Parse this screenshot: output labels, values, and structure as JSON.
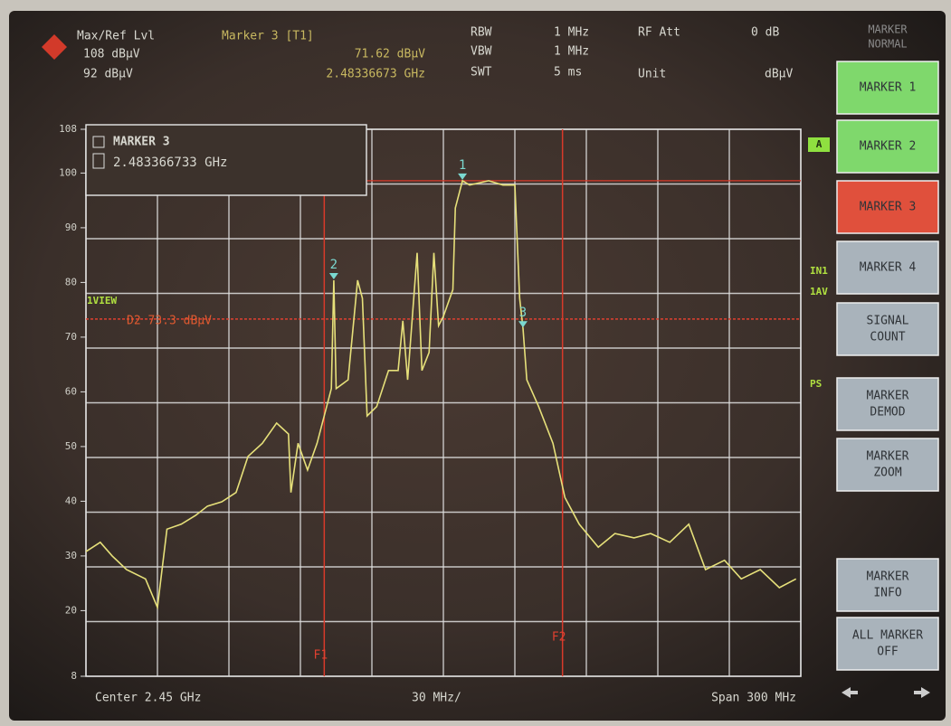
{
  "header": {
    "ref_level_label": "Max/Ref Lvl",
    "ref_level": "108 dBµV",
    "ref_level_2": "92 dBµV",
    "marker_label": "Marker 3 [T1]",
    "marker_level": "71.62 dBµV",
    "marker_freq": "2.48336673 GHz",
    "rbw_label": "RBW",
    "rbw": "1 MHz",
    "vbw_label": "VBW",
    "vbw": "1 MHz",
    "swt_label": "SWT",
    "swt": "5 ms",
    "rf_att_label": "RF Att",
    "rf_att": "0 dB",
    "unit_label": "Unit",
    "unit": "dBµV"
  },
  "softkeys": {
    "title": [
      "MARKER",
      "NORMAL"
    ],
    "buttons": [
      {
        "lines": [
          "MARKER 1"
        ],
        "color": "#7fd86c"
      },
      {
        "lines": [
          "MARKER 2"
        ],
        "color": "#7fd86c"
      },
      {
        "lines": [
          "MARKER 3"
        ],
        "color": "#e0503c"
      },
      {
        "lines": [
          "MARKER 4"
        ],
        "color": "#a9b3bb"
      },
      {
        "lines": [
          "SIGNAL",
          "COUNT"
        ],
        "color": "#a9b3bb"
      },
      {
        "lines": [
          "MARKER",
          "DEMOD"
        ],
        "color": "#a9b3bb"
      },
      {
        "lines": [
          "MARKER",
          "ZOOM"
        ],
        "color": "#a9b3bb"
      },
      {
        "lines": [
          "MARKER",
          "INFO"
        ],
        "color": "#a9b3bb"
      },
      {
        "lines": [
          "ALL MARKER",
          "OFF"
        ],
        "color": "#a9b3bb"
      }
    ]
  },
  "info_box": {
    "title": "MARKER 3",
    "value": "2.483366733 GHz"
  },
  "side_labels": {
    "trace": "A",
    "view": "1VIEW",
    "input": "IN1",
    "detector": "1AV",
    "preamp": "PS"
  },
  "footer": {
    "center": "Center 2.45 GHz",
    "div": "30 MHz/",
    "span": "Span 300 MHz"
  },
  "chart_data": {
    "type": "line",
    "xlim": [
      2.3,
      2.6
    ],
    "ylim": [
      8,
      108
    ],
    "yticks": [
      108,
      100,
      90,
      80,
      70,
      60,
      50,
      40,
      30,
      20,
      8
    ],
    "series": [
      {
        "color": "#e6e07a",
        "x": [
          2.3,
          2.306,
          2.311,
          2.317,
          2.325,
          2.33,
          2.334,
          2.34,
          2.346,
          2.351,
          2.357,
          2.363,
          2.368,
          2.374,
          2.38,
          2.385,
          2.386,
          2.389,
          2.393,
          2.397,
          2.403,
          2.404,
          2.405,
          2.41,
          2.414,
          2.416,
          2.418,
          2.422,
          2.427,
          2.431,
          2.433,
          2.435,
          2.439,
          2.441,
          2.444,
          2.446,
          2.448,
          2.45,
          2.454,
          2.455,
          2.457,
          2.458,
          2.461,
          2.469,
          2.475,
          2.48,
          2.482,
          2.4834,
          2.485,
          2.49,
          2.496,
          2.501,
          2.507,
          2.515,
          2.522,
          2.53,
          2.537,
          2.545,
          2.553,
          2.56,
          2.568,
          2.575,
          2.583,
          2.591,
          2.598
        ],
        "values": [
          30.8,
          32.5,
          30,
          27.5,
          25.8,
          20.6,
          34.9,
          35.8,
          37.4,
          39.1,
          39.9,
          41.6,
          48.2,
          50.6,
          54.3,
          52.3,
          41.6,
          50.6,
          45.7,
          50.6,
          60.6,
          80.4,
          60.6,
          62.2,
          80.4,
          77.1,
          55.6,
          57.3,
          63.9,
          63.9,
          73,
          62.2,
          85.4,
          63.9,
          67.2,
          85.4,
          72.1,
          73.8,
          78.7,
          93.6,
          96.9,
          98.6,
          97.8,
          98.6,
          97.8,
          97.8,
          77.1,
          71.6,
          62.2,
          57.3,
          50.6,
          40.7,
          35.8,
          31.6,
          34.1,
          33.3,
          34.1,
          32.5,
          35.8,
          27.5,
          29.2,
          25.8,
          27.5,
          24.2,
          25.8
        ]
      }
    ],
    "markers": [
      {
        "label": "1",
        "x": 2.458,
        "y": 98.6
      },
      {
        "label": "2",
        "x": 2.404,
        "y": 80.4
      },
      {
        "label": "3",
        "x": 2.4834,
        "y": 71.6
      }
    ],
    "display_line": {
      "label": "D2 73.3 dBµV",
      "value": 73.3
    },
    "freq_lines": [
      {
        "label": "F1",
        "value": 2.4
      },
      {
        "label": "F2",
        "value": 2.5
      }
    ]
  }
}
